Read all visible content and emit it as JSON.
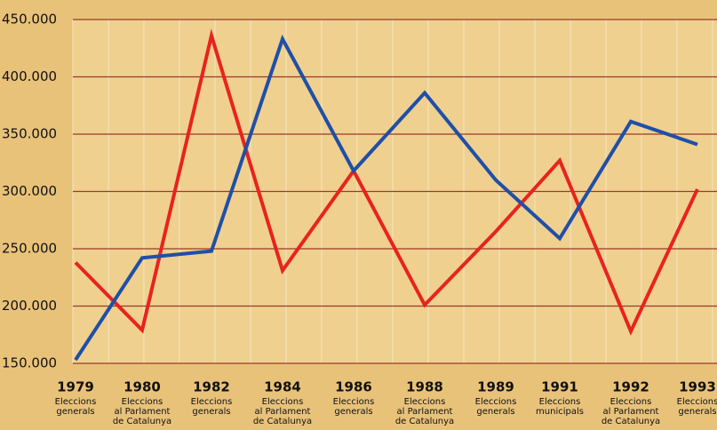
{
  "chart_data": {
    "type": "line",
    "categories": [
      "1979",
      "1980",
      "1982",
      "1984",
      "1986",
      "1988",
      "1989",
      "1991",
      "1992",
      "1993"
    ],
    "sublabels": [
      [
        "Eleccions",
        "generals"
      ],
      [
        "Eleccions",
        "al Parlament",
        "de Catalunya"
      ],
      [
        "Eleccions",
        "generals"
      ],
      [
        "Eleccions",
        "al Parlament",
        "de Catalunya"
      ],
      [
        "Eleccions",
        "generals"
      ],
      [
        "Eleccions",
        "al Parlament",
        "de Catalunya"
      ],
      [
        "Eleccions",
        "generals"
      ],
      [
        "Eleccions",
        "municipals"
      ],
      [
        "Eleccions",
        "al Parlament",
        "de Catalunya"
      ],
      [
        "Eleccions",
        "generals"
      ]
    ],
    "series": [
      {
        "color": "#e8231e",
        "values": [
          238000,
          179000,
          436000,
          231000,
          318000,
          201000,
          265000,
          327000,
          178000,
          302000
        ]
      },
      {
        "color": "#1f4fa8",
        "values": [
          153000,
          242000,
          248000,
          433000,
          318000,
          386000,
          310000,
          259000,
          361000,
          341000
        ]
      }
    ],
    "ylim": [
      150000,
      450000
    ],
    "yticks": [
      {
        "value": 150000,
        "label": "150.000"
      },
      {
        "value": 200000,
        "label": "200.000"
      },
      {
        "value": 250000,
        "label": "250.000"
      },
      {
        "value": 300000,
        "label": "300.000"
      },
      {
        "value": 350000,
        "label": "350.000"
      },
      {
        "value": 400000,
        "label": "400.000"
      },
      {
        "value": 450000,
        "label": "450.000"
      }
    ],
    "grid": true
  }
}
